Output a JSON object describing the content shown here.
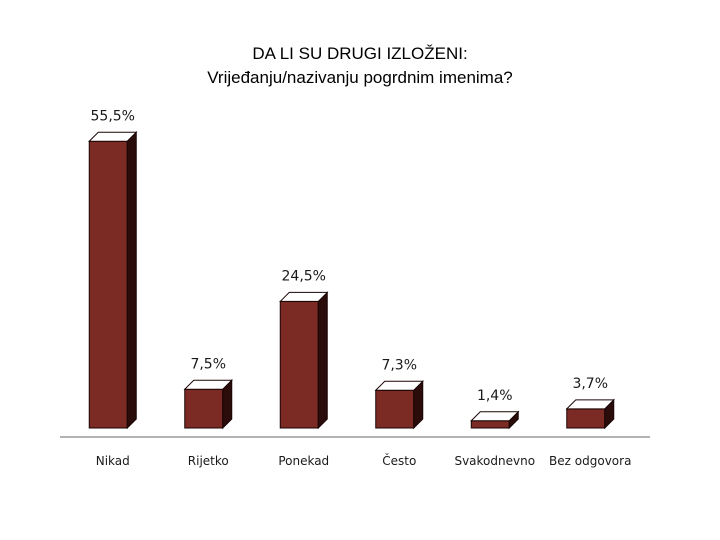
{
  "chart_data": {
    "type": "bar",
    "title": [
      "DA LI SU DRUGI IZLOŽENI:",
      "Vrijeđanju/nazivanju pogrdnim imenima?"
    ],
    "categories": [
      "Nikad",
      "Rijetko",
      "Ponekad",
      "Često",
      "Svakodnevno",
      "Bez odgovora"
    ],
    "values": [
      55.5,
      7.5,
      24.5,
      7.3,
      1.4,
      3.7
    ],
    "value_labels": [
      "55,5%",
      "7,5%",
      "24,5%",
      "7,3%",
      "1,4%",
      "3,7%"
    ],
    "ylim": [
      0,
      60
    ],
    "grid": false,
    "style": "3d-bar",
    "colors": {
      "bar_front": "#7b2b24",
      "bar_top": "#ffffff",
      "bar_side": "#2a0c0a",
      "outline": "#1a0505",
      "axis": "#9a9a9a"
    }
  }
}
